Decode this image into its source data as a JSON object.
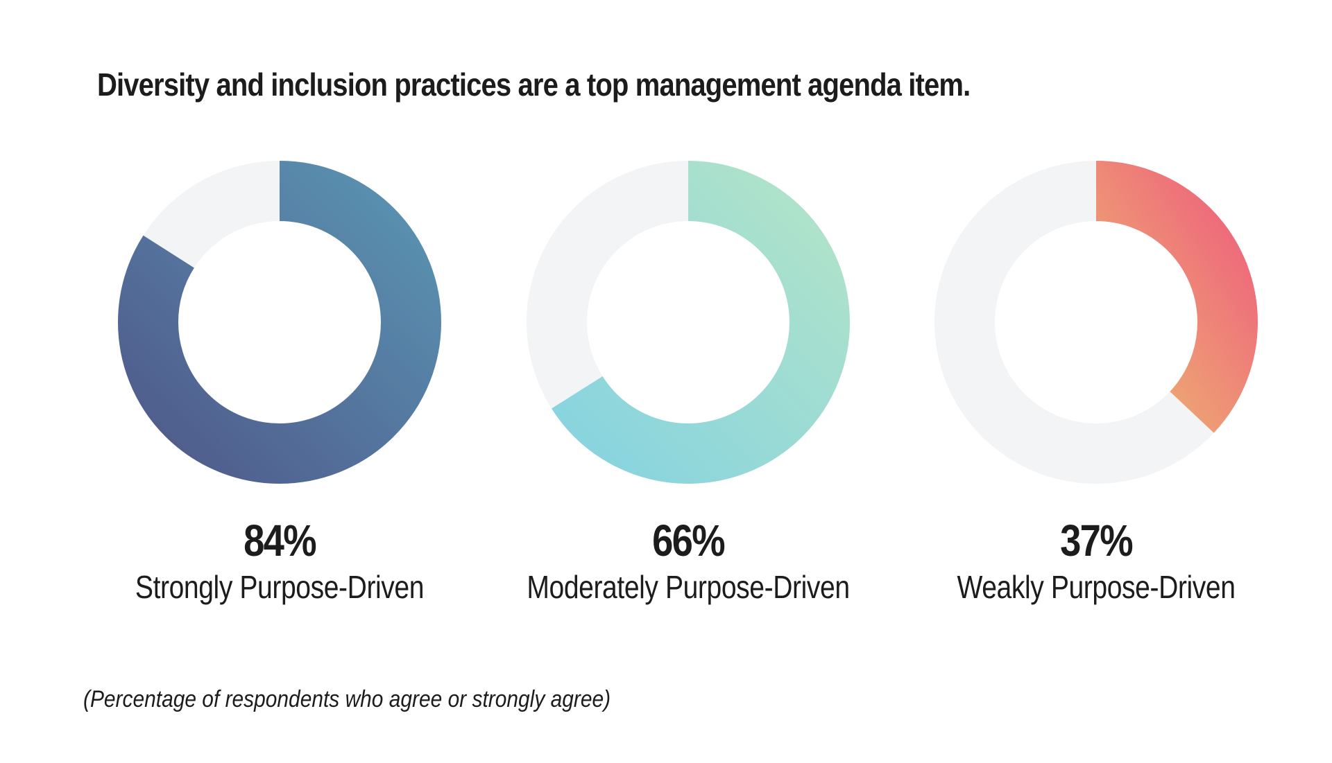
{
  "title": "Diversity and inclusion practices are a top management agenda item.",
  "footnote": "(Percentage of respondents who agree or strongly agree)",
  "colors": {
    "track": "#f3f4f6",
    "text": "#1c1c1c"
  },
  "chart_data": {
    "type": "pie",
    "title": "Diversity and inclusion practices are a top management agenda item.",
    "unit": "%",
    "series": [
      {
        "name": "Strongly Purpose-Driven",
        "value": 84,
        "value_label": "84%",
        "gradient": [
          "#4e5487",
          "#5b99b6"
        ]
      },
      {
        "name": "Moderately Purpose-Driven",
        "value": 66,
        "value_label": "66%",
        "gradient": [
          "#81d1e3",
          "#b6e5c6"
        ]
      },
      {
        "name": "Weakly Purpose-Driven",
        "value": 37,
        "value_label": "37%",
        "gradient": [
          "#eedf6c",
          "#ee6b7b"
        ]
      }
    ]
  }
}
